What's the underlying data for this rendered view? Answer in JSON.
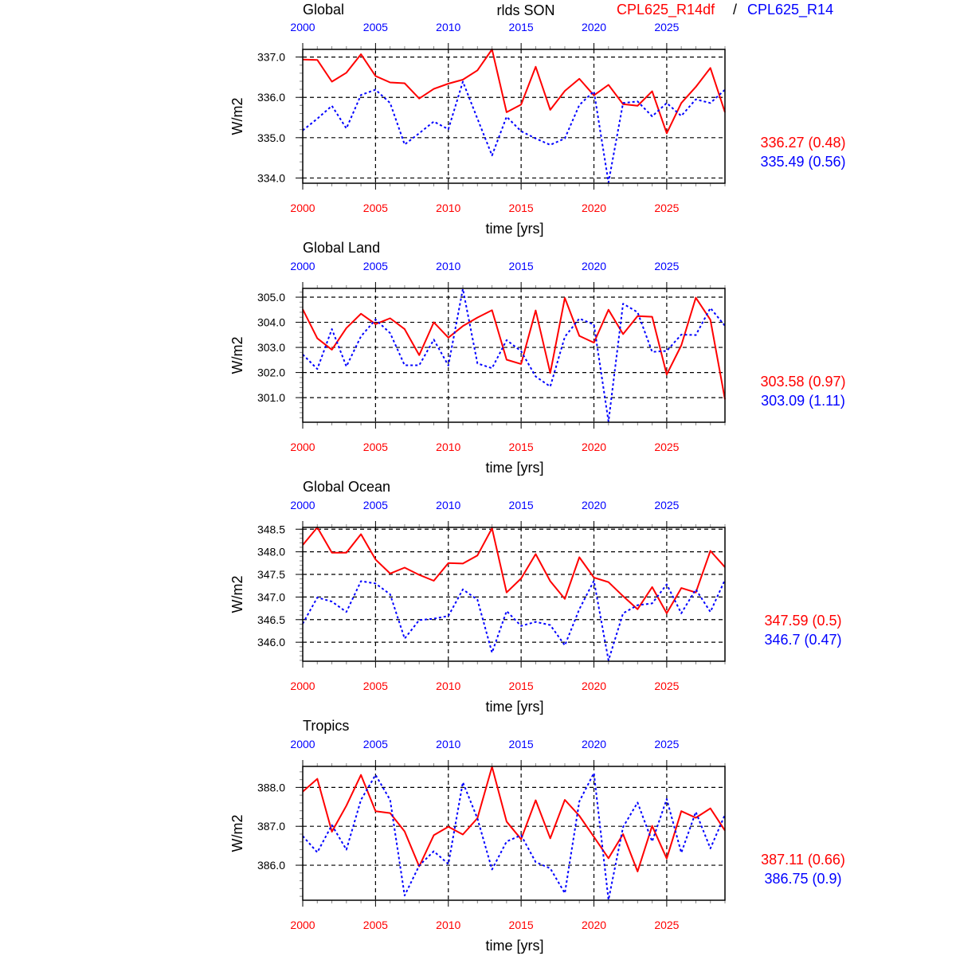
{
  "header": {
    "variable": "rlds SON",
    "series_a": "CPL625_R14df",
    "separator": "/",
    "series_b": "CPL625_R14"
  },
  "colors": {
    "series_a": "#ff0000",
    "series_b": "#0000ff",
    "grid": "#000000"
  },
  "chart_data": [
    {
      "type": "line",
      "title": "Global",
      "xlabel": "time [yrs]",
      "ylabel": "W/m2",
      "xlim": [
        2000,
        2029
      ],
      "ylim": [
        333.87,
        337.19
      ],
      "xticks": [
        2000,
        2005,
        2010,
        2015,
        2020,
        2025
      ],
      "yticks": [
        334.0,
        335.0,
        336.0,
        337.0
      ],
      "ytick_labels": [
        "334.0",
        "335.0",
        "336.0",
        "337.0"
      ],
      "yminor_step": 0.2,
      "grid": true,
      "x": [
        2000,
        2001,
        2002,
        2003,
        2004,
        2005,
        2006,
        2007,
        2008,
        2009,
        2010,
        2011,
        2012,
        2013,
        2014,
        2015,
        2016,
        2017,
        2018,
        2019,
        2020,
        2021,
        2022,
        2023,
        2024,
        2025,
        2026,
        2027,
        2028,
        2029
      ],
      "series": [
        {
          "name": "CPL625_R14df",
          "style": "solid",
          "stat": "336.27 (0.48)",
          "values": [
            336.94,
            336.93,
            336.39,
            336.61,
            337.07,
            336.53,
            336.37,
            336.35,
            335.97,
            336.21,
            336.34,
            336.44,
            336.67,
            337.19,
            335.63,
            335.82,
            336.76,
            335.69,
            336.16,
            336.46,
            336.05,
            336.31,
            335.83,
            335.79,
            336.15,
            335.11,
            335.86,
            336.26,
            336.73,
            335.63
          ]
        },
        {
          "name": "CPL625_R14",
          "style": "dotted",
          "stat": "335.49 (0.56)",
          "values": [
            335.18,
            335.47,
            335.79,
            335.23,
            336.06,
            336.19,
            335.86,
            334.83,
            335.11,
            335.4,
            335.21,
            336.39,
            335.47,
            334.56,
            335.52,
            335.16,
            334.98,
            334.82,
            334.98,
            335.81,
            336.15,
            333.89,
            335.86,
            335.9,
            335.53,
            335.86,
            335.54,
            335.95,
            335.86,
            336.19
          ]
        }
      ]
    },
    {
      "type": "line",
      "title": "Global Land",
      "xlabel": "time [yrs]",
      "ylabel": "W/m2",
      "xlim": [
        2000,
        2029
      ],
      "ylim": [
        300.02,
        305.35
      ],
      "xticks": [
        2000,
        2005,
        2010,
        2015,
        2020,
        2025
      ],
      "yticks": [
        301.0,
        302.0,
        303.0,
        304.0,
        305.0
      ],
      "ytick_labels": [
        "301.0",
        "302.0",
        "303.0",
        "304.0",
        "305.0"
      ],
      "yminor_step": 0.2,
      "grid": true,
      "x": [
        2000,
        2001,
        2002,
        2003,
        2004,
        2005,
        2006,
        2007,
        2008,
        2009,
        2010,
        2011,
        2012,
        2013,
        2014,
        2015,
        2016,
        2017,
        2018,
        2019,
        2020,
        2021,
        2022,
        2023,
        2024,
        2025,
        2026,
        2027,
        2028,
        2029
      ],
      "series": [
        {
          "name": "CPL625_R14df",
          "style": "solid",
          "stat": "303.58 (0.97)",
          "values": [
            304.52,
            303.36,
            302.91,
            303.77,
            304.34,
            303.93,
            304.16,
            303.73,
            302.69,
            304.0,
            303.39,
            303.85,
            304.19,
            304.48,
            302.51,
            302.34,
            304.47,
            301.98,
            304.97,
            303.46,
            303.19,
            304.5,
            303.53,
            304.25,
            304.22,
            301.92,
            303.08,
            304.98,
            304.1,
            300.93
          ]
        },
        {
          "name": "CPL625_R14",
          "style": "dotted",
          "stat": "303.09 (1.11)",
          "values": [
            302.72,
            302.14,
            303.73,
            302.24,
            303.44,
            304.11,
            303.57,
            302.29,
            302.29,
            303.31,
            302.28,
            305.33,
            302.36,
            302.17,
            303.29,
            302.85,
            301.84,
            301.44,
            303.42,
            304.15,
            303.91,
            300.05,
            304.74,
            304.4,
            302.82,
            302.86,
            303.51,
            303.49,
            304.57,
            303.86
          ]
        }
      ]
    },
    {
      "type": "line",
      "title": "Global Ocean",
      "xlabel": "time [yrs]",
      "ylabel": "W/m2",
      "xlim": [
        2000,
        2029
      ],
      "ylim": [
        345.58,
        348.54
      ],
      "xticks": [
        2000,
        2005,
        2010,
        2015,
        2020,
        2025
      ],
      "yticks": [
        346.0,
        346.5,
        347.0,
        347.5,
        348.0,
        348.5
      ],
      "ytick_labels": [
        "346.0",
        "346.5",
        "347.0",
        "347.5",
        "348.0",
        "348.5"
      ],
      "yminor_step": 0.1,
      "grid": true,
      "x": [
        2000,
        2001,
        2002,
        2003,
        2004,
        2005,
        2006,
        2007,
        2008,
        2009,
        2010,
        2011,
        2012,
        2013,
        2014,
        2015,
        2016,
        2017,
        2018,
        2019,
        2020,
        2021,
        2022,
        2023,
        2024,
        2025,
        2026,
        2027,
        2028,
        2029
      ],
      "series": [
        {
          "name": "CPL625_R14df",
          "style": "solid",
          "stat": "347.59 (0.5)",
          "values": [
            348.15,
            348.54,
            347.98,
            347.98,
            348.39,
            347.83,
            347.52,
            347.65,
            347.49,
            347.36,
            347.75,
            347.74,
            347.92,
            348.52,
            347.1,
            347.41,
            347.95,
            347.35,
            346.96,
            347.88,
            347.43,
            347.33,
            347.02,
            346.73,
            347.22,
            346.64,
            347.2,
            347.1,
            348.02,
            347.66
          ]
        },
        {
          "name": "CPL625_R14",
          "style": "dotted",
          "stat": "346.7 (0.47)",
          "values": [
            346.41,
            346.99,
            346.9,
            346.67,
            347.35,
            347.3,
            347.06,
            346.08,
            346.49,
            346.52,
            346.58,
            347.17,
            346.94,
            345.77,
            346.69,
            346.36,
            346.45,
            346.38,
            345.93,
            346.73,
            347.36,
            345.6,
            346.64,
            346.82,
            346.86,
            347.28,
            346.64,
            347.17,
            346.67,
            347.38
          ]
        }
      ]
    },
    {
      "type": "line",
      "title": "Tropics",
      "xlabel": "time [yrs]",
      "ylabel": "W/m2",
      "xlim": [
        2000,
        2029
      ],
      "ylim": [
        385.1,
        388.54
      ],
      "xticks": [
        2000,
        2005,
        2010,
        2015,
        2020,
        2025
      ],
      "yticks": [
        386.0,
        387.0,
        388.0
      ],
      "ytick_labels": [
        "386.0",
        "387.0",
        "388.0"
      ],
      "yminor_step": 0.2,
      "grid": true,
      "x": [
        2000,
        2001,
        2002,
        2003,
        2004,
        2005,
        2006,
        2007,
        2008,
        2009,
        2010,
        2011,
        2012,
        2013,
        2014,
        2015,
        2016,
        2017,
        2018,
        2019,
        2020,
        2021,
        2022,
        2023,
        2024,
        2025,
        2026,
        2027,
        2028,
        2029
      ],
      "series": [
        {
          "name": "CPL625_R14df",
          "style": "solid",
          "stat": "387.11 (0.66)",
          "values": [
            387.89,
            388.22,
            386.86,
            387.53,
            388.32,
            387.39,
            387.34,
            386.87,
            385.97,
            386.77,
            386.99,
            386.79,
            387.21,
            388.53,
            387.12,
            386.67,
            387.67,
            386.69,
            387.68,
            387.27,
            386.73,
            386.18,
            386.8,
            385.84,
            387.01,
            386.17,
            387.39,
            387.22,
            387.46,
            386.89
          ]
        },
        {
          "name": "CPL625_R14",
          "style": "dotted",
          "stat": "386.75 (0.9)",
          "values": [
            386.75,
            386.33,
            387.03,
            386.4,
            387.68,
            388.32,
            387.68,
            385.22,
            385.99,
            386.36,
            386.03,
            388.13,
            387.2,
            385.89,
            386.61,
            386.77,
            386.08,
            385.92,
            385.28,
            387.64,
            388.37,
            385.11,
            386.98,
            387.61,
            386.61,
            387.7,
            386.32,
            387.37,
            386.43,
            387.3
          ]
        }
      ]
    }
  ]
}
